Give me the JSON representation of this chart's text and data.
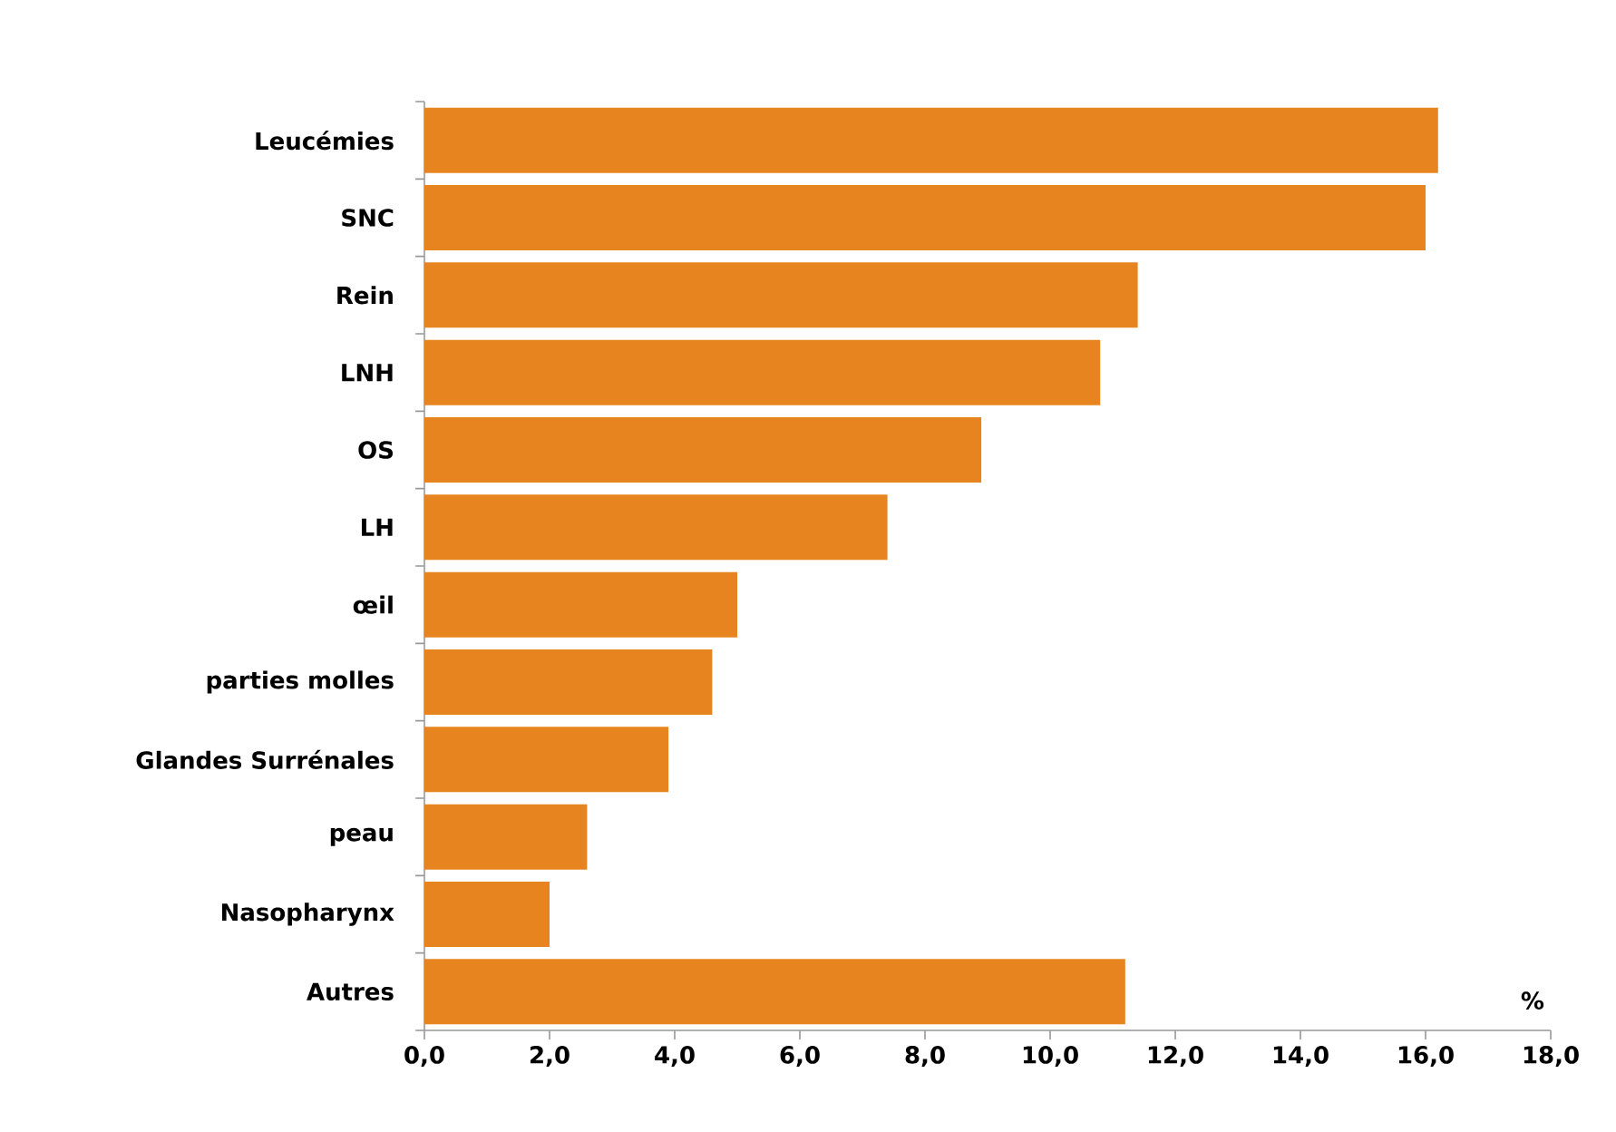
{
  "chart_data": {
    "type": "bar",
    "orientation": "horizontal",
    "xlabel": "%",
    "categories": [
      "Leucémies",
      "SNC",
      "Rein",
      "LNH",
      "OS",
      "LH",
      "œil",
      "parties molles",
      "Glandes Surrénales",
      "peau",
      "Nasopharynx",
      "Autres"
    ],
    "values": [
      16.2,
      16.0,
      11.4,
      10.8,
      8.9,
      7.4,
      5.0,
      4.6,
      3.9,
      2.6,
      2.0,
      11.2
    ],
    "color": "#e8841f",
    "xlim": [
      0,
      18
    ],
    "xticks": [
      {
        "value": 0,
        "label": "0,0"
      },
      {
        "value": 2,
        "label": "2,0"
      },
      {
        "value": 4,
        "label": "4,0"
      },
      {
        "value": 6,
        "label": "6,0"
      },
      {
        "value": 8,
        "label": "8,0"
      },
      {
        "value": 10,
        "label": "10,0"
      },
      {
        "value": 12,
        "label": "12,0"
      },
      {
        "value": 14,
        "label": "14,0"
      },
      {
        "value": 16,
        "label": "16,0"
      },
      {
        "value": 18,
        "label": "18,0"
      }
    ]
  }
}
